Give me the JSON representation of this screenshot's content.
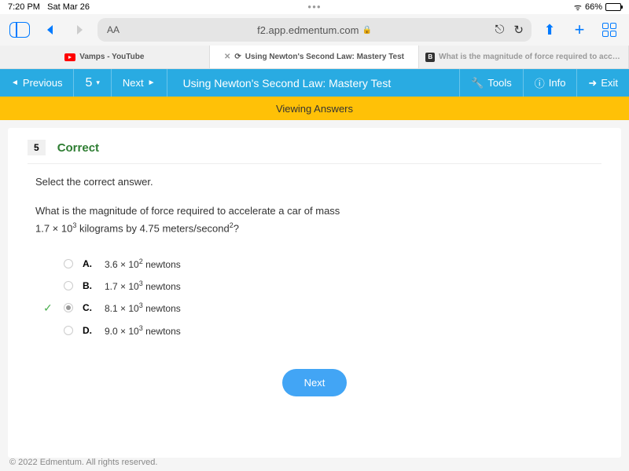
{
  "status": {
    "time": "7:20 PM",
    "date": "Sat Mar 26",
    "battery_pct": "66%"
  },
  "browser": {
    "url": "f2.app.edmentum.com",
    "aa": "AA"
  },
  "tabs": {
    "t1": "Vamps - YouTube",
    "t2": "Using Newton's Second Law: Mastery Test",
    "t3": "What is the magnitude of force required to accel..."
  },
  "nav": {
    "previous": "Previous",
    "counter": "5",
    "next": "Next",
    "title": "Using Newton's Second Law: Mastery Test",
    "tools": "Tools",
    "info": "Info",
    "exit": "Exit"
  },
  "banner": "Viewing Answers",
  "question": {
    "number": "5",
    "status": "Correct",
    "instruction": "Select the correct answer.",
    "text_line1": "What is the magnitude of force required to accelerate a car of mass",
    "text_line2_pre": "1.7 × 10",
    "text_line2_sup": "3",
    "text_line2_mid": " kilograms by 4.75 meters/second",
    "text_line2_sup2": "2",
    "text_line2_end": "?"
  },
  "options": {
    "a": {
      "letter": "A.",
      "pre": "3.6 × 10",
      "sup": "2",
      "post": " newtons"
    },
    "b": {
      "letter": "B.",
      "pre": "1.7 × 10",
      "sup": "3",
      "post": " newtons"
    },
    "c": {
      "letter": "C.",
      "pre": "8.1 × 10",
      "sup": "3",
      "post": " newtons"
    },
    "d": {
      "letter": "D.",
      "pre": "9.0 × 10",
      "sup": "3",
      "post": " newtons"
    }
  },
  "next_button": "Next",
  "footer": "© 2022 Edmentum. All rights reserved."
}
